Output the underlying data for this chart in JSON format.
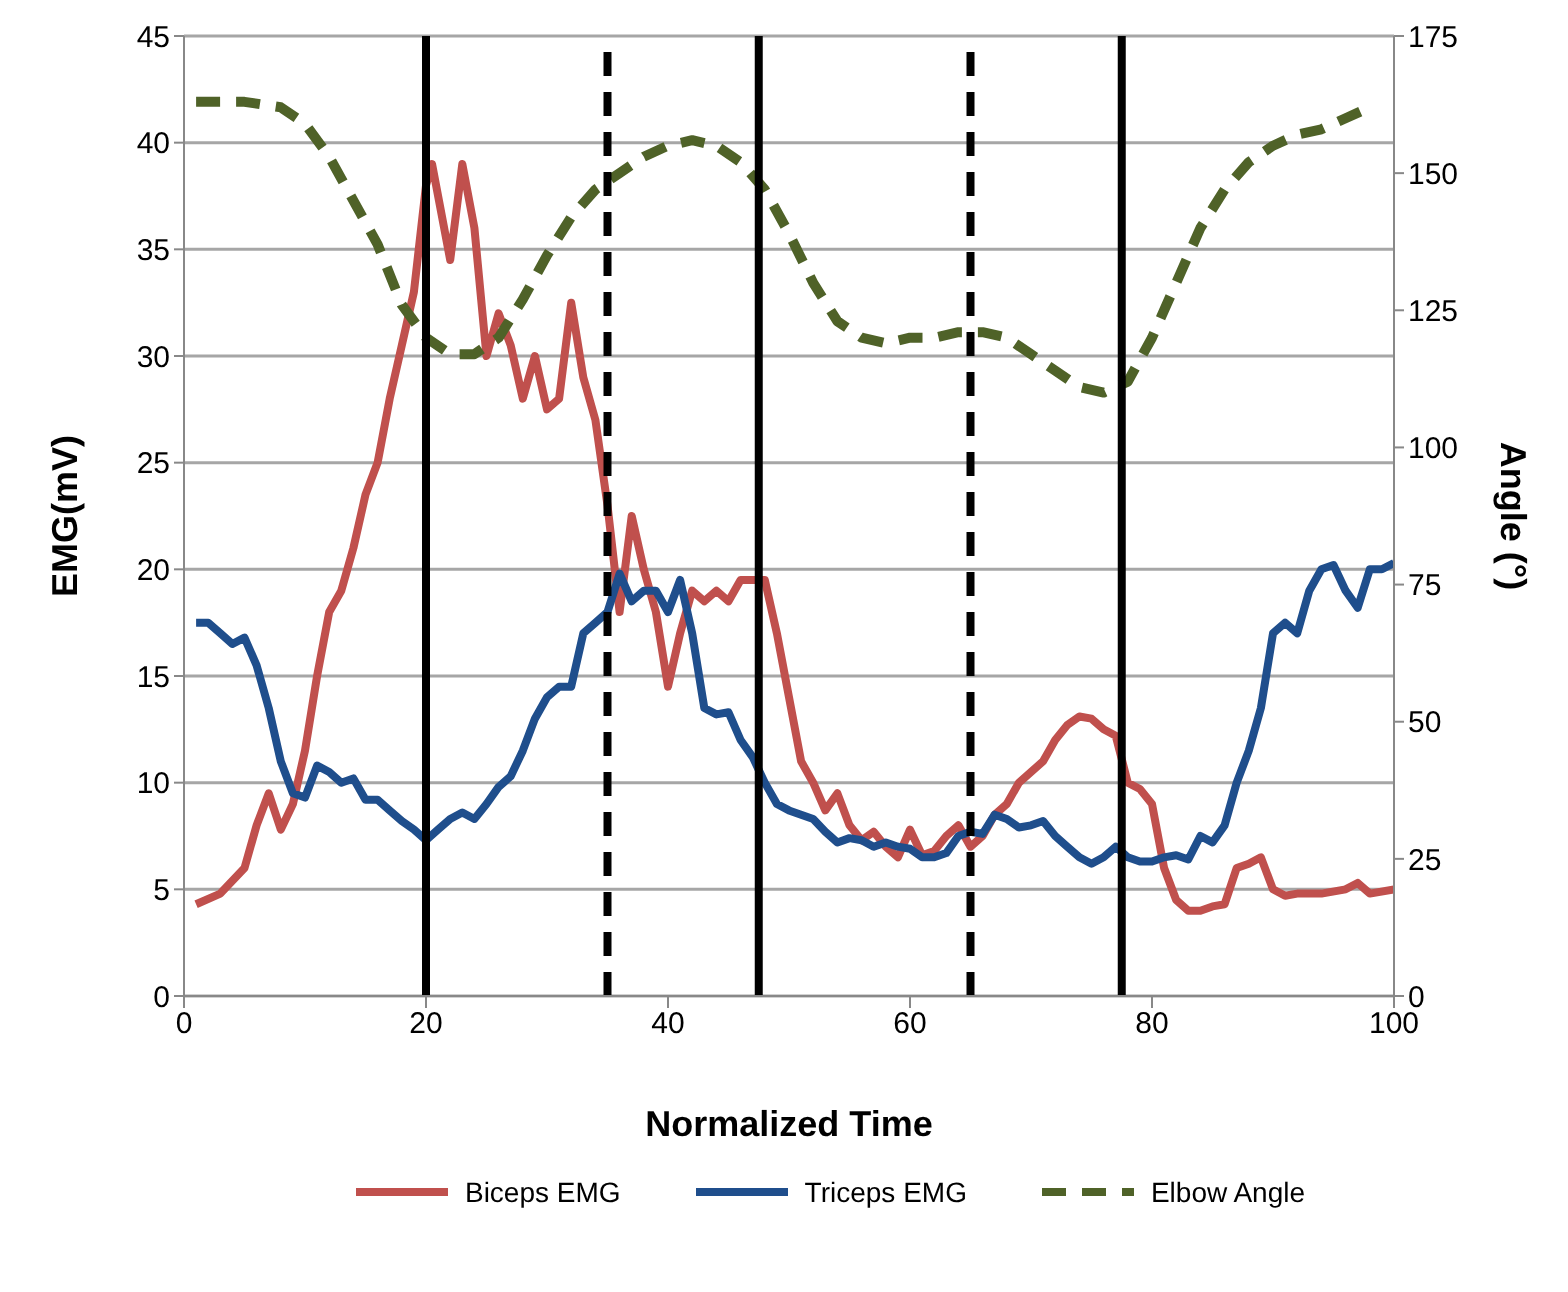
{
  "chart_data": {
    "type": "line",
    "xlabel": "Normalized Time",
    "ylabel": "EMG(mV)",
    "y2label": "Angle (°)",
    "xlim": [
      0,
      100
    ],
    "xticks": [
      0,
      20,
      40,
      60,
      80,
      100
    ],
    "ylim": [
      0,
      45
    ],
    "yticks": [
      0,
      5,
      10,
      15,
      20,
      25,
      30,
      35,
      40,
      45
    ],
    "y2lim": [
      0,
      175
    ],
    "y2ticks": [
      0,
      25,
      50,
      75,
      100,
      125,
      150,
      175
    ],
    "grid": "y",
    "legend": "bottom",
    "marker": "none",
    "ref_lines": [
      {
        "axis": "x",
        "value": 20,
        "color": "#000000",
        "line_style": "solid"
      },
      {
        "axis": "x",
        "value": 35,
        "color": "#000000",
        "line_style": "dashed"
      },
      {
        "axis": "x",
        "value": 47.5,
        "color": "#000000",
        "line_style": "solid"
      },
      {
        "axis": "x",
        "value": 65,
        "color": "#000000",
        "line_style": "dashed"
      },
      {
        "axis": "x",
        "value": 77.5,
        "color": "#000000",
        "line_style": "solid"
      }
    ],
    "series": [
      {
        "name": "Biceps EMG",
        "color": "#c0504d",
        "line_style": "solid",
        "x": [
          1,
          3,
          5,
          6,
          7,
          8,
          9,
          10,
          11,
          12,
          13,
          14,
          15,
          16,
          17,
          18,
          19,
          20,
          20.5,
          22,
          23,
          24,
          25,
          26,
          27,
          28,
          29,
          30,
          31,
          32,
          33,
          34,
          35,
          36,
          37,
          38,
          39,
          40,
          41,
          42,
          43,
          44,
          45,
          46,
          47,
          48,
          49,
          50,
          51,
          52,
          53,
          54,
          55,
          56,
          57,
          58,
          59,
          60,
          61,
          62,
          63,
          64,
          65,
          66,
          67,
          68,
          69,
          70,
          71,
          72,
          73,
          74,
          75,
          76,
          77,
          78,
          79,
          80,
          81,
          82,
          83,
          84,
          85,
          86,
          87,
          88,
          89,
          90,
          91,
          92,
          94,
          96,
          97,
          98,
          100
        ],
        "values": [
          4.3,
          4.8,
          6,
          8,
          9.5,
          7.8,
          9,
          11.5,
          15,
          18,
          19,
          21,
          23.5,
          25,
          28,
          30.5,
          33,
          38,
          39,
          34.5,
          39,
          36,
          30,
          32,
          30.5,
          28,
          30,
          27.5,
          28,
          32.5,
          29,
          27,
          23,
          18,
          22.5,
          20,
          18,
          14.5,
          17,
          19,
          18.5,
          19,
          18.5,
          19.5,
          19.5,
          19.5,
          17,
          14,
          11,
          10,
          8.7,
          9.5,
          8,
          7.3,
          7.7,
          7,
          6.5,
          7.8,
          6.6,
          6.8,
          7.5,
          8,
          7,
          7.5,
          8.5,
          9,
          10,
          10.5,
          11,
          12,
          12.7,
          13.1,
          13,
          12.5,
          12.2,
          10,
          9.7,
          9,
          6,
          4.5,
          4,
          4,
          4.2,
          4.3,
          6,
          6.2,
          6.5,
          5,
          4.7,
          4.8,
          4.8,
          5,
          5.3,
          4.8,
          5
        ]
      },
      {
        "name": "Triceps EMG",
        "color": "#1f4e8c",
        "line_style": "solid",
        "x": [
          1,
          2,
          3,
          4,
          5,
          6,
          7,
          8,
          9,
          10,
          11,
          12,
          13,
          14,
          15,
          16,
          17,
          18,
          19,
          20,
          21,
          22,
          23,
          24,
          25,
          26,
          27,
          28,
          29,
          30,
          31,
          32,
          33,
          34,
          35,
          36,
          37,
          38,
          39,
          40,
          41,
          42,
          43,
          44,
          45,
          46,
          47,
          48,
          49,
          50,
          52,
          53,
          54,
          55,
          56,
          57,
          58,
          59,
          60,
          61,
          62,
          63,
          64,
          65,
          66,
          67,
          68,
          69,
          70,
          71,
          72,
          73,
          74,
          75,
          76,
          77,
          78,
          79,
          80,
          81,
          82,
          83,
          84,
          85,
          86,
          87,
          88,
          89,
          90,
          91,
          92,
          93,
          94,
          95,
          96,
          97,
          98,
          99,
          100
        ],
        "values": [
          17.5,
          17.5,
          17,
          16.5,
          16.8,
          15.5,
          13.5,
          11,
          9.5,
          9.3,
          10.8,
          10.5,
          10,
          10.2,
          9.2,
          9.2,
          8.7,
          8.2,
          7.8,
          7.3,
          7.8,
          8.3,
          8.6,
          8.3,
          9,
          9.8,
          10.3,
          11.5,
          13,
          14,
          14.5,
          14.5,
          17,
          17.5,
          18,
          19.8,
          18.5,
          19,
          19,
          18,
          19.5,
          17,
          13.5,
          13.2,
          13.3,
          12,
          11.2,
          10,
          9,
          8.7,
          8.3,
          7.7,
          7.2,
          7.4,
          7.3,
          7,
          7.2,
          7,
          6.9,
          6.5,
          6.5,
          6.7,
          7.5,
          7.7,
          7.6,
          8.5,
          8.3,
          7.9,
          8,
          8.2,
          7.5,
          7,
          6.5,
          6.2,
          6.5,
          7,
          6.5,
          6.3,
          6.3,
          6.5,
          6.6,
          6.4,
          7.5,
          7.2,
          8,
          10,
          11.5,
          13.5,
          17,
          17.5,
          17,
          19,
          20,
          20.2,
          19,
          18.2,
          20,
          20,
          20.3
        ]
      },
      {
        "name": "Elbow Angle",
        "color": "#4f6228",
        "line_style": "dashed",
        "axis": "y2",
        "x": [
          1,
          5,
          8,
          10,
          12,
          14,
          16,
          18,
          20,
          22,
          24,
          26,
          28,
          30,
          32,
          34,
          36,
          38,
          40,
          42,
          44,
          46,
          48,
          50,
          52,
          54,
          56,
          58,
          60,
          62,
          64,
          66,
          68,
          70,
          72,
          74,
          76,
          78,
          80,
          82,
          84,
          86,
          88,
          90,
          92,
          94,
          96,
          98
        ],
        "values": [
          163,
          163,
          162,
          159,
          153,
          145,
          137,
          126,
          120,
          117,
          117,
          120,
          127,
          135,
          142,
          147,
          150,
          153,
          155,
          156,
          155,
          152,
          147,
          139,
          130,
          123,
          120,
          119,
          120,
          120,
          121,
          121,
          120,
          117,
          114,
          111,
          110,
          112,
          120,
          130,
          140,
          147,
          152,
          155,
          157,
          158,
          160,
          162
        ]
      }
    ]
  }
}
